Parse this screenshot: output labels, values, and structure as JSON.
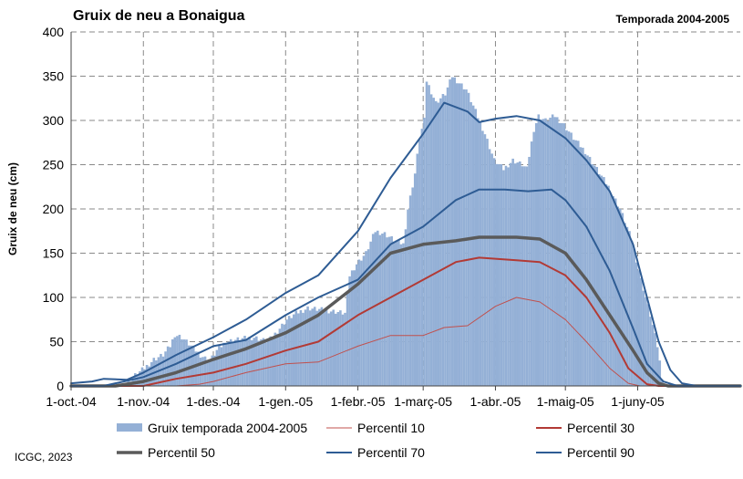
{
  "colors": {
    "bars": "#94b0d6",
    "p10": "#c0504d",
    "p30": "#b23a35",
    "p50": "#5a5a5a",
    "p70": "#2e5c94",
    "p90": "#2e5c94",
    "grid": "#8a8a8a"
  },
  "credit": "ICGC, 2023",
  "chart_data": {
    "type": "bar",
    "title": "Gruix de neu a Bonaigua",
    "subtitle": "Temporada 2004-2005",
    "xlabel": "",
    "ylabel": "Gruix de neu (cm)",
    "ylim": [
      0,
      400
    ],
    "yticks": [
      "0",
      "50",
      "100",
      "150",
      "200",
      "250",
      "300",
      "350",
      "400"
    ],
    "xlim": [
      "2004-10-01",
      "2005-07-15"
    ],
    "xticks": [
      {
        "date": "2004-10-01",
        "label": "1-oct.-04"
      },
      {
        "date": "2004-11-01",
        "label": "1-nov.-04"
      },
      {
        "date": "2004-12-01",
        "label": "1-des.-04"
      },
      {
        "date": "2005-01-01",
        "label": "1-gen.-05"
      },
      {
        "date": "2005-02-01",
        "label": "1-febr.-05"
      },
      {
        "date": "2005-03-01",
        "label": "1-març-05"
      },
      {
        "date": "2005-04-01",
        "label": "1-abr.-05"
      },
      {
        "date": "2005-05-01",
        "label": "1-maig-05"
      },
      {
        "date": "2005-06-01",
        "label": "1-juny-05"
      }
    ],
    "grid": true,
    "legend_position": "bottom",
    "bars": {
      "name": "Gruix temporada 2004-2005",
      "points": [
        [
          "2004-10-01",
          0
        ],
        [
          "2004-10-24",
          0
        ],
        [
          "2004-10-25",
          5
        ],
        [
          "2004-10-28",
          12
        ],
        [
          "2004-11-01",
          20
        ],
        [
          "2004-11-05",
          30
        ],
        [
          "2004-11-09",
          35
        ],
        [
          "2004-11-12",
          45
        ],
        [
          "2004-11-14",
          58
        ],
        [
          "2004-11-17",
          55
        ],
        [
          "2004-11-21",
          45
        ],
        [
          "2004-11-25",
          35
        ],
        [
          "2004-11-29",
          28
        ],
        [
          "2004-12-02",
          40
        ],
        [
          "2004-12-06",
          50
        ],
        [
          "2004-12-12",
          53
        ],
        [
          "2004-12-18",
          55
        ],
        [
          "2004-12-24",
          50
        ],
        [
          "2004-12-28",
          62
        ],
        [
          "2005-01-01",
          75
        ],
        [
          "2005-01-05",
          82
        ],
        [
          "2005-01-10",
          88
        ],
        [
          "2005-01-16",
          86
        ],
        [
          "2005-01-22",
          84
        ],
        [
          "2005-01-26",
          82
        ],
        [
          "2005-01-28",
          125
        ],
        [
          "2005-01-31",
          138
        ],
        [
          "2005-02-04",
          150
        ],
        [
          "2005-02-08",
          175
        ],
        [
          "2005-02-12",
          172
        ],
        [
          "2005-02-16",
          165
        ],
        [
          "2005-02-20",
          160
        ],
        [
          "2005-02-22",
          200
        ],
        [
          "2005-02-25",
          240
        ],
        [
          "2005-02-27",
          280
        ],
        [
          "2005-03-01",
          300
        ],
        [
          "2005-03-02",
          345
        ],
        [
          "2005-03-06",
          320
        ],
        [
          "2005-03-10",
          330
        ],
        [
          "2005-03-13",
          350
        ],
        [
          "2005-03-15",
          345
        ],
        [
          "2005-03-19",
          335
        ],
        [
          "2005-03-23",
          310
        ],
        [
          "2005-03-27",
          285
        ],
        [
          "2005-03-31",
          255
        ],
        [
          "2005-04-04",
          245
        ],
        [
          "2005-04-08",
          255
        ],
        [
          "2005-04-12",
          250
        ],
        [
          "2005-04-14",
          245
        ],
        [
          "2005-04-17",
          290
        ],
        [
          "2005-04-19",
          305
        ],
        [
          "2005-04-22",
          300
        ],
        [
          "2005-04-26",
          305
        ],
        [
          "2005-04-30",
          295
        ],
        [
          "2005-05-04",
          280
        ],
        [
          "2005-05-09",
          265
        ],
        [
          "2005-05-14",
          245
        ],
        [
          "2005-05-19",
          225
        ],
        [
          "2005-05-24",
          200
        ],
        [
          "2005-05-29",
          165
        ],
        [
          "2005-06-02",
          120
        ],
        [
          "2005-06-06",
          80
        ],
        [
          "2005-06-09",
          45
        ],
        [
          "2005-06-11",
          10
        ],
        [
          "2005-06-12",
          0
        ],
        [
          "2005-07-15",
          0
        ]
      ]
    },
    "series": [
      {
        "name": "Percentil 10",
        "key": "p10",
        "width": 1,
        "points": [
          [
            "2004-10-01",
            0
          ],
          [
            "2004-11-15",
            0
          ],
          [
            "2004-11-25",
            2
          ],
          [
            "2004-12-01",
            5
          ],
          [
            "2004-12-15",
            15
          ],
          [
            "2005-01-01",
            25
          ],
          [
            "2005-01-15",
            27
          ],
          [
            "2005-02-01",
            45
          ],
          [
            "2005-02-15",
            57
          ],
          [
            "2005-03-01",
            57
          ],
          [
            "2005-03-10",
            66
          ],
          [
            "2005-03-20",
            68
          ],
          [
            "2005-04-01",
            90
          ],
          [
            "2005-04-10",
            100
          ],
          [
            "2005-04-20",
            95
          ],
          [
            "2005-05-01",
            75
          ],
          [
            "2005-05-10",
            50
          ],
          [
            "2005-05-20",
            20
          ],
          [
            "2005-05-28",
            3
          ],
          [
            "2005-06-02",
            0
          ],
          [
            "2005-07-15",
            0
          ]
        ]
      },
      {
        "name": "Percentil 30",
        "key": "p30",
        "width": 2,
        "points": [
          [
            "2004-10-01",
            0
          ],
          [
            "2004-11-01",
            0
          ],
          [
            "2004-11-15",
            8
          ],
          [
            "2004-12-01",
            15
          ],
          [
            "2004-12-15",
            25
          ],
          [
            "2005-01-01",
            40
          ],
          [
            "2005-01-15",
            50
          ],
          [
            "2005-02-01",
            80
          ],
          [
            "2005-02-15",
            100
          ],
          [
            "2005-03-01",
            120
          ],
          [
            "2005-03-15",
            140
          ],
          [
            "2005-03-25",
            145
          ],
          [
            "2005-04-10",
            142
          ],
          [
            "2005-04-20",
            140
          ],
          [
            "2005-05-01",
            125
          ],
          [
            "2005-05-10",
            100
          ],
          [
            "2005-05-20",
            60
          ],
          [
            "2005-05-28",
            20
          ],
          [
            "2005-06-05",
            2
          ],
          [
            "2005-06-10",
            0
          ],
          [
            "2005-07-15",
            0
          ]
        ]
      },
      {
        "name": "Percentil 50",
        "key": "p50",
        "width": 3.5,
        "points": [
          [
            "2004-10-01",
            0
          ],
          [
            "2004-10-20",
            0
          ],
          [
            "2004-11-01",
            5
          ],
          [
            "2004-11-15",
            15
          ],
          [
            "2004-12-01",
            30
          ],
          [
            "2004-12-15",
            42
          ],
          [
            "2005-01-01",
            60
          ],
          [
            "2005-01-15",
            80
          ],
          [
            "2005-02-01",
            115
          ],
          [
            "2005-02-15",
            150
          ],
          [
            "2005-03-01",
            160
          ],
          [
            "2005-03-15",
            164
          ],
          [
            "2005-03-25",
            168
          ],
          [
            "2005-04-10",
            168
          ],
          [
            "2005-04-20",
            166
          ],
          [
            "2005-05-01",
            150
          ],
          [
            "2005-05-10",
            120
          ],
          [
            "2005-05-20",
            80
          ],
          [
            "2005-05-30",
            40
          ],
          [
            "2005-06-05",
            15
          ],
          [
            "2005-06-10",
            3
          ],
          [
            "2005-06-14",
            0
          ],
          [
            "2005-07-15",
            0
          ]
        ]
      },
      {
        "name": "Percentil 70",
        "key": "p70",
        "width": 2,
        "points": [
          [
            "2004-10-01",
            0
          ],
          [
            "2004-10-15",
            0
          ],
          [
            "2004-11-01",
            10
          ],
          [
            "2004-11-15",
            25
          ],
          [
            "2004-12-01",
            45
          ],
          [
            "2004-12-15",
            52
          ],
          [
            "2005-01-01",
            80
          ],
          [
            "2005-01-15",
            100
          ],
          [
            "2005-02-01",
            120
          ],
          [
            "2005-02-15",
            160
          ],
          [
            "2005-03-01",
            180
          ],
          [
            "2005-03-15",
            210
          ],
          [
            "2005-03-25",
            222
          ],
          [
            "2005-04-05",
            222
          ],
          [
            "2005-04-15",
            220
          ],
          [
            "2005-04-25",
            222
          ],
          [
            "2005-05-01",
            210
          ],
          [
            "2005-05-10",
            180
          ],
          [
            "2005-05-20",
            130
          ],
          [
            "2005-05-30",
            65
          ],
          [
            "2005-06-05",
            25
          ],
          [
            "2005-06-12",
            5
          ],
          [
            "2005-06-18",
            0
          ],
          [
            "2005-07-15",
            0
          ]
        ]
      },
      {
        "name": "Percentil 90",
        "key": "p90",
        "width": 2,
        "points": [
          [
            "2004-10-01",
            3
          ],
          [
            "2004-10-10",
            5
          ],
          [
            "2004-10-15",
            8
          ],
          [
            "2004-10-25",
            7
          ],
          [
            "2004-11-01",
            15
          ],
          [
            "2004-11-15",
            35
          ],
          [
            "2004-12-01",
            55
          ],
          [
            "2004-12-15",
            75
          ],
          [
            "2005-01-01",
            105
          ],
          [
            "2005-01-15",
            125
          ],
          [
            "2005-02-01",
            175
          ],
          [
            "2005-02-15",
            235
          ],
          [
            "2005-03-01",
            285
          ],
          [
            "2005-03-10",
            320
          ],
          [
            "2005-03-20",
            310
          ],
          [
            "2005-03-25",
            298
          ],
          [
            "2005-04-01",
            302
          ],
          [
            "2005-04-10",
            305
          ],
          [
            "2005-04-20",
            300
          ],
          [
            "2005-05-01",
            280
          ],
          [
            "2005-05-10",
            255
          ],
          [
            "2005-05-20",
            220
          ],
          [
            "2005-05-30",
            160
          ],
          [
            "2005-06-05",
            100
          ],
          [
            "2005-06-10",
            50
          ],
          [
            "2005-06-15",
            18
          ],
          [
            "2005-06-20",
            3
          ],
          [
            "2005-06-26",
            0
          ],
          [
            "2005-07-15",
            0
          ]
        ]
      }
    ]
  }
}
